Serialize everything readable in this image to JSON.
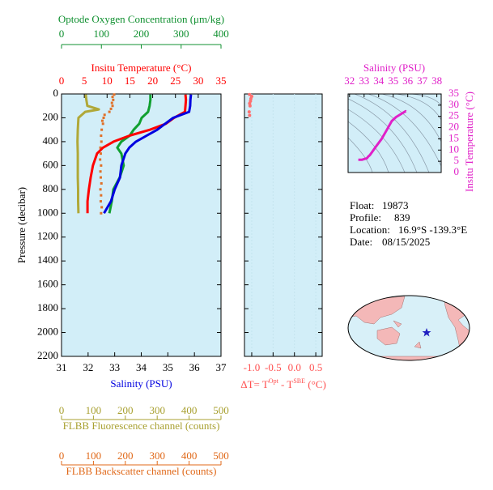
{
  "chart_data": [
    {
      "type": "profile",
      "ylabel": "Pressure (decibar)",
      "ylim": [
        0,
        2200
      ],
      "yticks": [
        0,
        200,
        400,
        600,
        800,
        1000,
        1200,
        1400,
        1600,
        1800,
        2000,
        2200
      ],
      "axes": [
        {
          "label": "Salinity (PSU)",
          "color": "#0000e0",
          "lim": [
            31,
            37
          ],
          "ticks": [
            31,
            32,
            33,
            34,
            35,
            36,
            37
          ]
        },
        {
          "label": "Insitu Temperature (°C)",
          "color": "#ff0000",
          "lim": [
            0,
            35
          ],
          "ticks": [
            0,
            5,
            10,
            15,
            20,
            25,
            30,
            35
          ]
        },
        {
          "label": "Optode Oxygen Concentration (μm/kg)",
          "color": "#109030",
          "lim": [
            0,
            400
          ],
          "ticks": [
            0,
            100,
            200,
            300,
            400
          ]
        },
        {
          "label": "FLBB Fluorescence channel (counts)",
          "color": "#a8a030",
          "lim": [
            0,
            500
          ],
          "ticks": [
            0,
            100,
            200,
            300,
            400,
            500
          ]
        },
        {
          "label": "FLBB Backscatter channel (counts)",
          "color": "#e06818",
          "lim": [
            0,
            500
          ],
          "ticks": [
            0,
            100,
            200,
            300,
            400,
            500
          ]
        }
      ],
      "series": [
        {
          "axis": 3,
          "style": "line",
          "color": "#b0a838",
          "pressure": [
            5,
            50,
            100,
            130,
            150,
            200,
            300,
            400,
            500,
            600,
            700,
            800,
            900,
            1000
          ],
          "values": [
            76,
            78,
            81,
            117,
            74,
            53,
            51,
            50,
            51,
            51,
            51,
            52,
            52,
            53
          ]
        },
        {
          "axis": 4,
          "style": "dots",
          "color": "#e07028",
          "pressure": [
            5,
            25,
            50,
            75,
            100,
            125,
            150,
            175,
            200,
            225,
            250,
            300,
            350,
            400,
            450,
            500,
            550,
            600,
            650,
            700,
            750,
            800,
            850,
            900,
            950,
            1000
          ],
          "values": [
            165,
            160,
            162,
            158,
            160,
            155,
            150,
            135,
            132,
            128,
            130,
            126,
            124,
            125,
            122,
            123,
            121,
            124,
            122,
            123,
            125,
            122,
            124,
            123,
            126,
            124
          ]
        },
        {
          "axis": 2,
          "style": "line",
          "color": "#10a030",
          "pressure": [
            5,
            50,
            100,
            150,
            200,
            250,
            300,
            350,
            400,
            450,
            500,
            600,
            700,
            800,
            900,
            1000
          ],
          "values": [
            223,
            223,
            221,
            217,
            201,
            195,
            181,
            171,
            150,
            140,
            150,
            156,
            146,
            130,
            126,
            120
          ]
        },
        {
          "axis": 1,
          "style": "line",
          "color": "#ff0000",
          "pressure": [
            5,
            50,
            100,
            150,
            200,
            250,
            300,
            350,
            400,
            450,
            500,
            600,
            700,
            800,
            900,
            1000
          ],
          "values": [
            27.2,
            27.3,
            27.2,
            27.1,
            24.7,
            22.9,
            19.4,
            14.9,
            11.4,
            9.1,
            7.8,
            6.9,
            6.4,
            6.0,
            5.7,
            5.7
          ]
        },
        {
          "axis": 0,
          "style": "line",
          "color": "#0000e0",
          "pressure": [
            5,
            50,
            100,
            150,
            200,
            250,
            300,
            350,
            400,
            450,
            500,
            600,
            700,
            800,
            900,
            1000
          ],
          "values": [
            35.87,
            35.85,
            35.84,
            35.8,
            35.2,
            34.9,
            34.6,
            34.2,
            33.8,
            33.55,
            33.4,
            33.25,
            33.2,
            33.0,
            32.86,
            32.6
          ]
        }
      ]
    },
    {
      "type": "scatter",
      "xlabel": [
        "ΔT= T",
        "Opt",
        " - T",
        "SBE",
        " (°C)"
      ],
      "color": "#ff7070",
      "xlim": [
        -1.17,
        0.65
      ],
      "xticks": [
        {
          "value": -1,
          "label": "-1.0"
        },
        -0.5,
        {
          "value": 0,
          "label": "0.0"
        },
        0.5
      ],
      "ylim": [
        0,
        2200
      ],
      "yticks": [
        0,
        200,
        400,
        600,
        800,
        1000,
        1200,
        1400,
        1600,
        1800,
        2000,
        2200
      ],
      "x": [
        -1.05,
        -1.0,
        -1.02,
        -1.03,
        -1.05,
        -1.04,
        -1.06,
        -1.05
      ],
      "pressure": [
        5,
        20,
        40,
        60,
        80,
        100,
        150,
        180
      ]
    },
    {
      "type": "line",
      "xlabel": "Salinity (PSU)",
      "ylabel": "Insitu Temperature (°C)",
      "color": "#e020c8",
      "xlim": [
        31.9,
        38.3
      ],
      "xticks": [
        32,
        33,
        34,
        35,
        36,
        37,
        38
      ],
      "ylim": [
        0,
        35
      ],
      "yticks": [
        0,
        5,
        10,
        15,
        20,
        25,
        30,
        35
      ],
      "x": [
        35.87,
        35.85,
        35.84,
        35.8,
        35.2,
        34.9,
        34.6,
        34.2,
        33.8,
        33.55,
        33.4,
        33.25,
        33.2,
        33.0,
        32.86,
        32.6
      ],
      "y": [
        27.2,
        27.3,
        27.2,
        27.1,
        24.7,
        22.9,
        19.4,
        14.9,
        11.4,
        9.1,
        7.8,
        6.9,
        6.4,
        6.0,
        5.7,
        5.7
      ]
    }
  ],
  "info": [
    {
      "label": "Float:",
      "value": "19873"
    },
    {
      "label": "Profile:",
      "value": "839"
    },
    {
      "label": "Location:",
      "value": "16.9°S  -139.3°E"
    },
    {
      "label": "Date:",
      "value": "08/15/2025"
    }
  ]
}
